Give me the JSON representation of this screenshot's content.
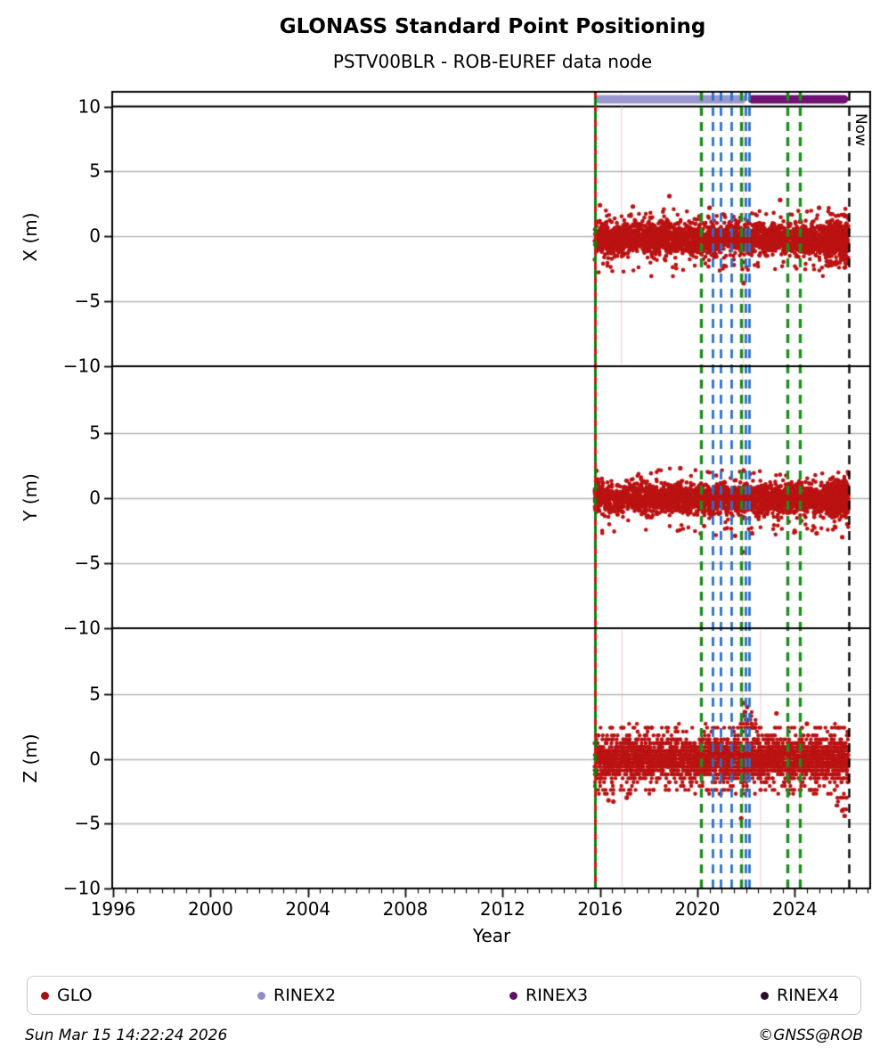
{
  "title": "GLONASS Standard Point Positioning",
  "subtitle": "PSTV00BLR - ROB-EUREF data node",
  "footer": {
    "timestamp": "Sun Mar 15 14:22:24 2026",
    "credit": "©GNSS@ROB"
  },
  "legend": {
    "items": [
      {
        "label": "GLO",
        "color": "#a81111"
      },
      {
        "label": "RINEX2",
        "color": "#8e8ec6"
      },
      {
        "label": "RINEX3",
        "color": "#5e1162"
      },
      {
        "label": "RINEX4",
        "color": "#2d0c2d"
      }
    ]
  },
  "chart_data": {
    "type": "scatter",
    "xlabel": "Year",
    "xlim": [
      1995.96,
      2027.1
    ],
    "x_ticks": [
      1996,
      2000,
      2004,
      2008,
      2012,
      2016,
      2020,
      2024
    ],
    "x_tick_labels": [
      "1996",
      "2000",
      "2004",
      "2008",
      "2012",
      "2016",
      "2020",
      "2024"
    ],
    "x_minor_step": 0.5,
    "grid_values": [
      5,
      0,
      -5
    ],
    "point_color": "#bb1212",
    "data_start": 2015.78,
    "data_end": 2026.21,
    "now": {
      "x": 2026.21,
      "label": "Now"
    },
    "hline": {
      "panel": 0,
      "value": 10,
      "color": "#000000"
    },
    "start_line": {
      "x": 2015.78,
      "solid_color": "#0c830c",
      "dash_color": "#d01414"
    },
    "event_lines": [
      {
        "x": 2020.14,
        "color": "#1e8c1e"
      },
      {
        "x": 2020.62,
        "color": "#2d72c4"
      },
      {
        "x": 2020.96,
        "color": "#2d72c4"
      },
      {
        "x": 2021.38,
        "color": "#2d72c4"
      },
      {
        "x": 2021.79,
        "color": "#1e8c1e"
      },
      {
        "x": 2021.99,
        "color": "#2d72c4"
      },
      {
        "x": 2022.14,
        "color": "#2d72c4"
      },
      {
        "x": 2023.7,
        "color": "#1e8c1e"
      },
      {
        "x": 2024.22,
        "color": "#1e8c1e"
      },
      {
        "x": 2026.21,
        "color": "#000000",
        "label": "Now"
      }
    ],
    "rinex_bars": [
      {
        "label": "RINEX2",
        "x0": 2015.78,
        "x1": 2022.02,
        "y": 10.55,
        "color": "#9898cf"
      },
      {
        "label": "RINEX3",
        "x0": 2022.07,
        "x1": 2026.21,
        "y": 10.55,
        "color": "#701173"
      }
    ],
    "stems": {
      "color": "#e89a9a",
      "xs": [
        {
          "panel": 0,
          "x": 2016.88
        },
        {
          "panel": 0,
          "x": 2021.9
        },
        {
          "panel": 1,
          "x": 2021.86
        },
        {
          "panel": 2,
          "x": 2016.9
        },
        {
          "panel": 2,
          "x": 2021.86
        },
        {
          "panel": 2,
          "x": 2022.6
        },
        {
          "panel": 2,
          "x": 2024.2
        }
      ]
    },
    "panels": [
      {
        "name": "X",
        "ylabel": "X (m)",
        "ylim": [
          -10,
          11.1
        ],
        "ytick_values": [
          10,
          5,
          0,
          -5,
          -10
        ],
        "ytick_labels": [
          "10",
          "5",
          "0",
          "−5",
          "−10"
        ],
        "bands": [
          {
            "x0": 2015.78,
            "x1": 2026.21,
            "n": 2700,
            "mean": -0.2,
            "std": 0.62,
            "min": -2.1,
            "max": 1.6
          },
          {
            "x0": 2025.25,
            "x1": 2026.21,
            "n": 260,
            "mean": -0.3,
            "std": 1.0,
            "min": -3.1,
            "max": 2.3
          },
          {
            "x0": 2015.9,
            "x1": 2026.2,
            "n": 45,
            "mean": -2.35,
            "std": 0.3,
            "min": -3.1,
            "max": -2.0
          },
          {
            "x0": 2015.9,
            "x1": 2026.2,
            "n": 30,
            "mean": 1.8,
            "std": 0.22,
            "min": 1.5,
            "max": 2.5
          }
        ],
        "outliers": [
          [
            2018.85,
            3.1
          ],
          [
            2021.9,
            -3.6
          ],
          [
            2023.4,
            2.8
          ],
          [
            2017.35,
            2.3
          ],
          [
            2020.5,
            2.2
          ],
          [
            2025.0,
            2.2
          ],
          [
            2016.0,
            2.4
          ]
        ]
      },
      {
        "name": "Y",
        "ylabel": "Y (m)",
        "ylim": [
          -10,
          10.2
        ],
        "ytick_values": [
          5,
          0,
          -5,
          -10
        ],
        "ytick_labels": [
          "5",
          "0",
          "−5",
          "−10"
        ],
        "bands": [
          {
            "x0": 2015.78,
            "x1": 2026.21,
            "n": 2700,
            "mean": -0.05,
            "std": 0.58,
            "min": -2.2,
            "max": 1.8
          },
          {
            "x0": 2025.3,
            "x1": 2026.21,
            "n": 220,
            "mean": 0.0,
            "std": 0.85,
            "min": -2.9,
            "max": 2.2
          },
          {
            "x0": 2015.9,
            "x1": 2026.2,
            "n": 40,
            "mean": -2.3,
            "std": 0.25,
            "min": -2.9,
            "max": -2.0
          },
          {
            "x0": 2015.9,
            "x1": 2026.2,
            "n": 25,
            "mean": 1.9,
            "std": 0.2,
            "min": 1.7,
            "max": 2.4
          }
        ],
        "outliers": [
          [
            2015.85,
            2.1
          ],
          [
            2021.86,
            -4.15
          ],
          [
            2021.55,
            -2.9
          ],
          [
            2024.9,
            -2.7
          ],
          [
            2022.25,
            -2.7
          ],
          [
            2025.95,
            -3.0
          ],
          [
            2019.3,
            2.3
          ]
        ]
      },
      {
        "name": "Z",
        "ylabel": "Z (m)",
        "ylim": [
          -10,
          10
        ],
        "quantize": 0.3,
        "ytick_values": [
          5,
          0,
          -5,
          -10
        ],
        "ytick_labels": [
          "5",
          "0",
          "−5",
          "−10"
        ],
        "bands": [
          {
            "x0": 2015.78,
            "x1": 2026.21,
            "n": 3200,
            "mean": 0.0,
            "std": 0.85,
            "min": -2.1,
            "max": 2.1
          },
          {
            "x0": 2015.9,
            "x1": 2026.2,
            "n": 70,
            "mean": 2.35,
            "std": 0.15,
            "min": 2.2,
            "max": 2.7
          },
          {
            "x0": 2015.9,
            "x1": 2026.2,
            "n": 80,
            "mean": -2.4,
            "std": 0.2,
            "min": -2.8,
            "max": -2.2
          },
          {
            "x0": 2021.85,
            "x1": 2022.4,
            "n": 26,
            "mean": 2.8,
            "std": 0.5,
            "min": 2.2,
            "max": 3.8
          },
          {
            "x0": 2025.6,
            "x1": 2026.15,
            "n": 14,
            "mean": -3.3,
            "std": 0.6,
            "min": -4.4,
            "max": -2.3
          }
        ],
        "outliers": [
          [
            2021.88,
            4.3
          ],
          [
            2021.95,
            3.6
          ],
          [
            2023.25,
            3.5
          ],
          [
            2021.8,
            -4.6
          ],
          [
            2016.35,
            -3.2
          ],
          [
            2016.55,
            -3.3
          ],
          [
            2017.1,
            -3.0
          ],
          [
            2026.05,
            -4.4
          ],
          [
            2025.95,
            -4.0
          ],
          [
            2022.05,
            4.0
          ],
          [
            2024.5,
            2.7
          ]
        ]
      }
    ]
  }
}
